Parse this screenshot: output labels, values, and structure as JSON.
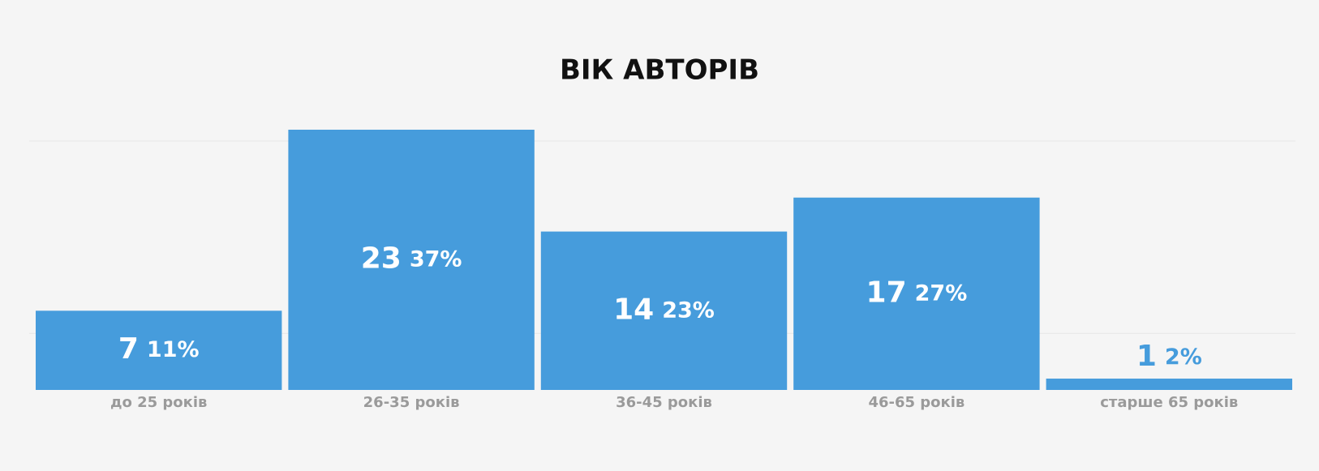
{
  "chart_data": {
    "type": "bar",
    "title": "ВІК АВТОРІВ",
    "categories": [
      "до 25 років",
      "26-35 років",
      "36-45 років",
      "46-65 років",
      "старше 65 років"
    ],
    "values": [
      7,
      23,
      14,
      17,
      1
    ],
    "shares": [
      11,
      37,
      23,
      27,
      2
    ],
    "share_labels": [
      "11%",
      "37%",
      "23%",
      "27%",
      "2%"
    ],
    "color": "#469cdc",
    "ylim": [
      0,
      23
    ],
    "yticks": [
      5,
      22
    ],
    "grid": true
  }
}
